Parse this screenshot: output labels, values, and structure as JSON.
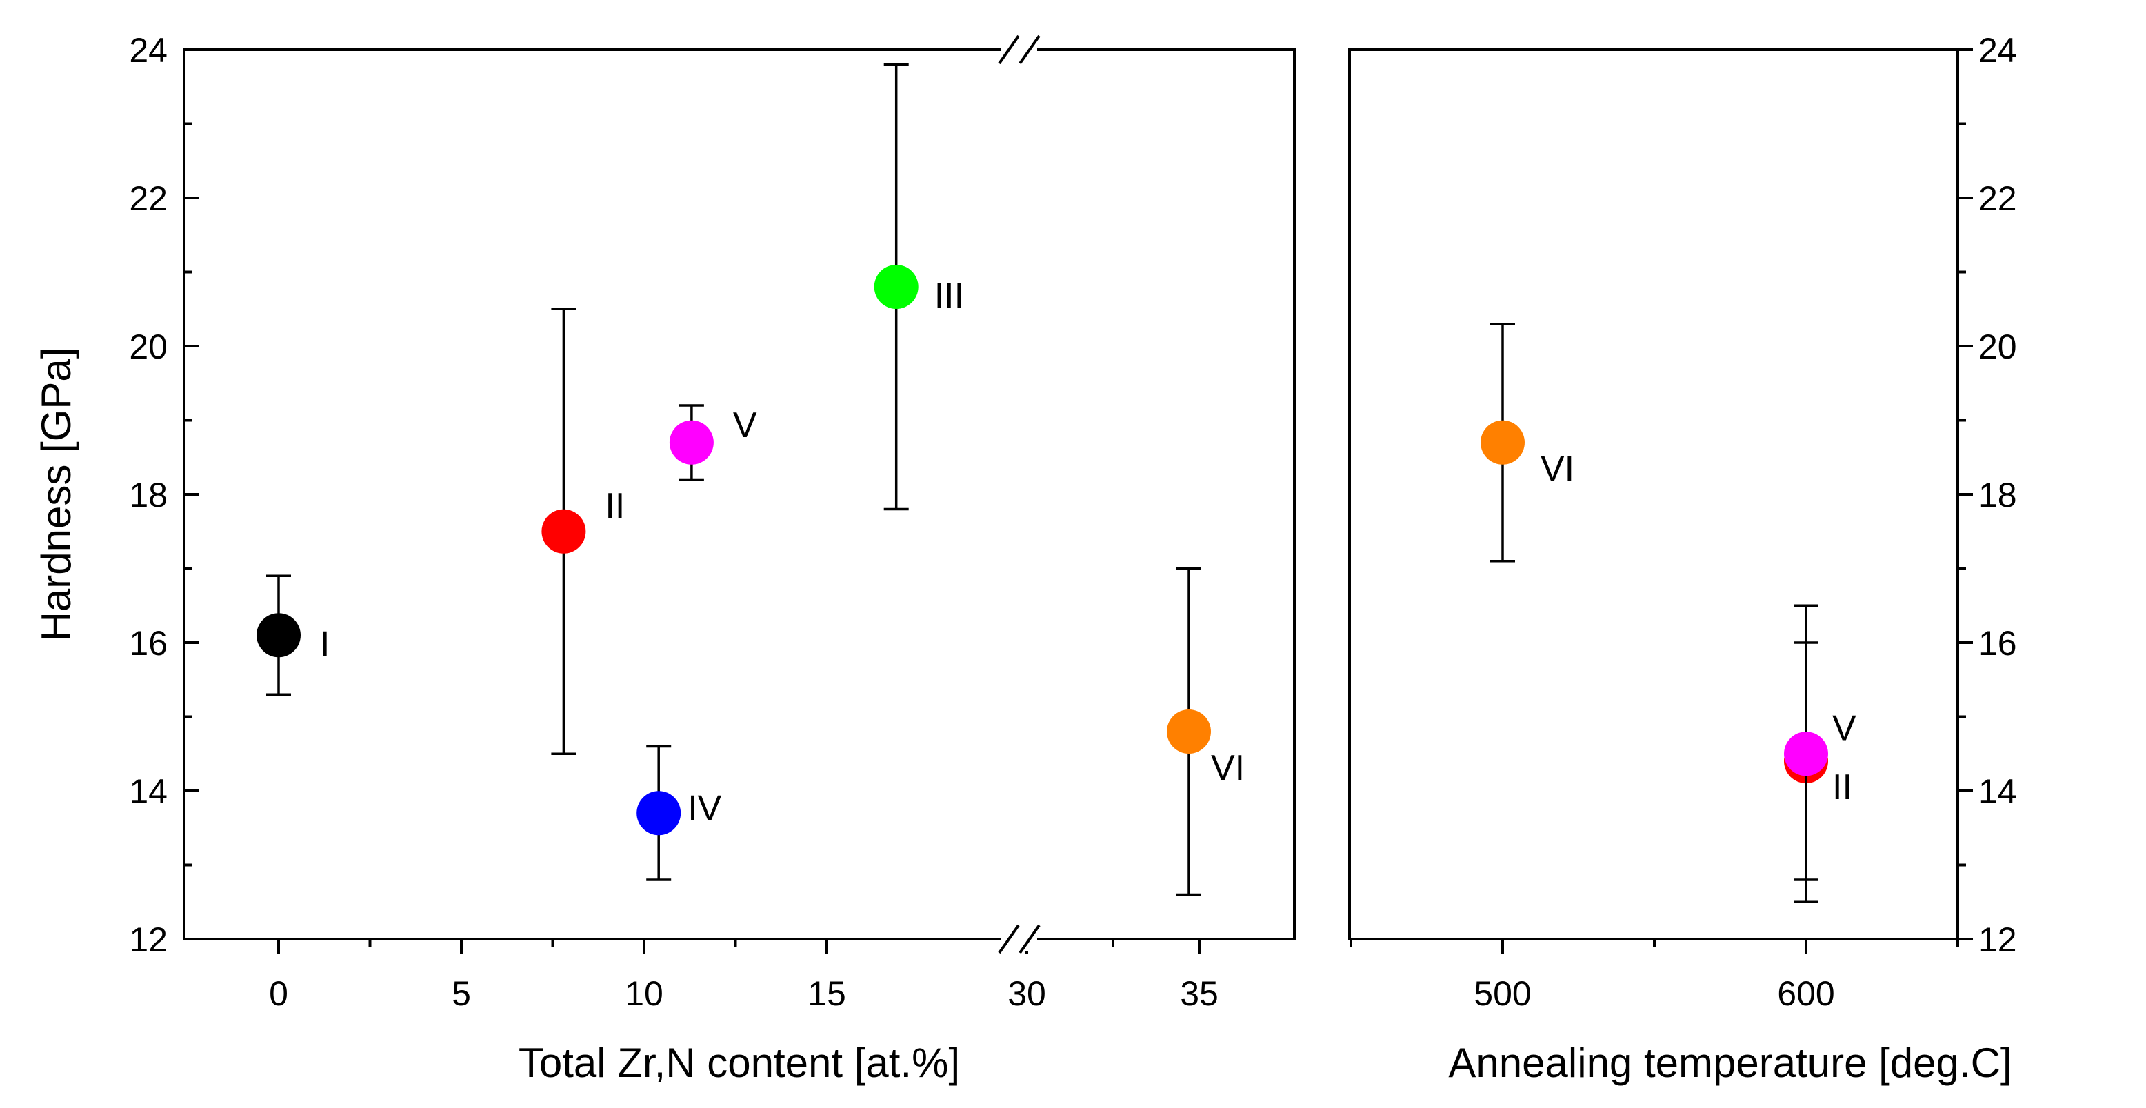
{
  "chart_data": [
    {
      "type": "scatter",
      "xlabel": "Total Zr,N content [at.%]",
      "ylabel": "Hardness [GPa]",
      "ylim": [
        12,
        24
      ],
      "y_ticks": [
        "12",
        "14",
        "16",
        "18",
        "20",
        "22",
        "24"
      ],
      "x_ticks": [
        "0",
        "5",
        "10",
        "15",
        "30",
        "35"
      ],
      "x_axis_break": "broken between 15 and 30",
      "points": [
        {
          "label": "I",
          "x": 0.0,
          "y": 16.1,
          "err_low": 15.3,
          "err_high": 16.9,
          "color": "#000000"
        },
        {
          "label": "II",
          "x": 7.8,
          "y": 17.5,
          "err_low": 14.5,
          "err_high": 20.5,
          "color": "#ff0000"
        },
        {
          "label": "IV",
          "x": 10.4,
          "y": 13.7,
          "err_low": 12.8,
          "err_high": 14.6,
          "color": "#0000ff"
        },
        {
          "label": "V",
          "x": 11.3,
          "y": 18.7,
          "err_low": 18.2,
          "err_high": 19.2,
          "color": "#ff00ff"
        },
        {
          "label": "III",
          "x": 16.9,
          "y": 20.8,
          "err_low": 17.8,
          "err_high": 23.8,
          "color": "#00ff00"
        },
        {
          "label": "VI",
          "x": 34.7,
          "y": 14.8,
          "err_low": 12.6,
          "err_high": 17.0,
          "color": "#ff8000"
        }
      ]
    },
    {
      "type": "scatter",
      "xlabel": "Annealing temperature [deg.C]",
      "ylabel": "",
      "ylim": [
        12,
        24
      ],
      "y_ticks": [
        "12",
        "14",
        "16",
        "18",
        "20",
        "22",
        "24"
      ],
      "x_ticks": [
        "500",
        "600"
      ],
      "points": [
        {
          "label": "VI",
          "x": 500,
          "y": 18.7,
          "err_low": 17.1,
          "err_high": 20.3,
          "color": "#ff8000"
        },
        {
          "label": "II",
          "x": 600,
          "y": 14.4,
          "err_low": 12.8,
          "err_high": 16.0,
          "color": "#ff0000"
        },
        {
          "label": "V",
          "x": 600,
          "y": 14.5,
          "err_low": 12.5,
          "err_high": 16.5,
          "color": "#ff00ff"
        }
      ]
    }
  ]
}
